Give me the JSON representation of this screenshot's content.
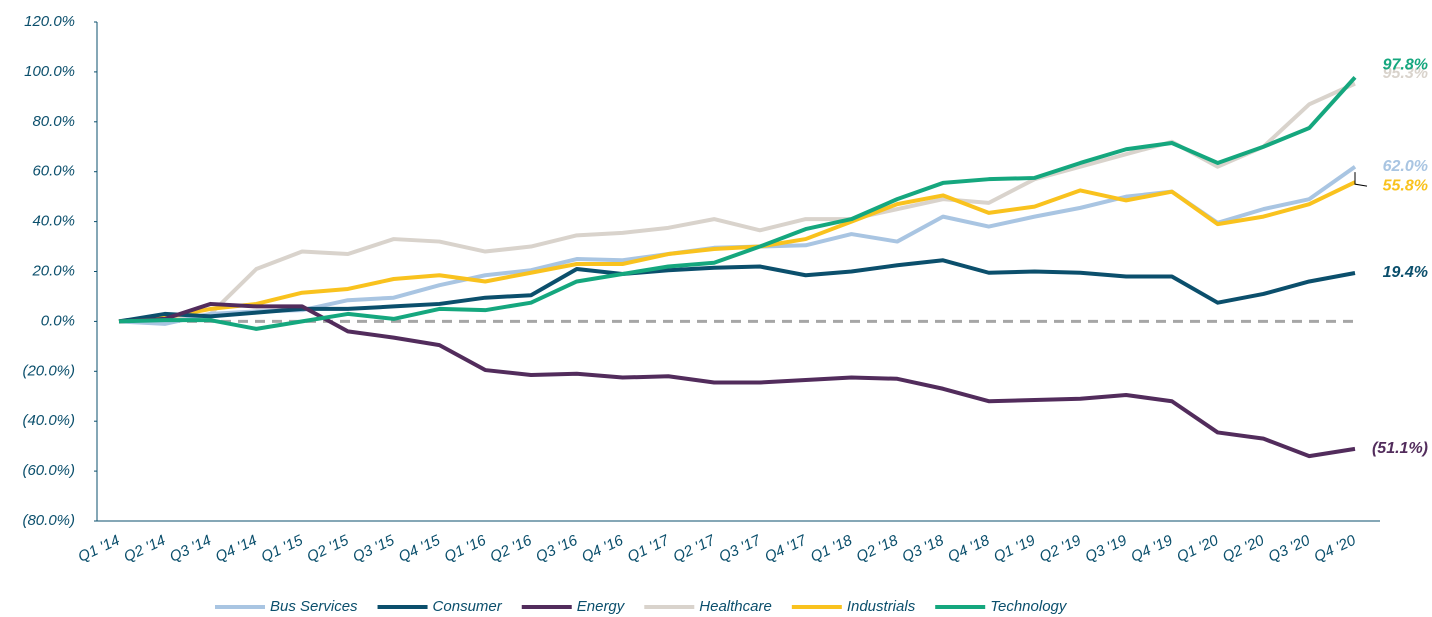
{
  "chart_data": {
    "type": "line",
    "x": [
      "Q1 '14",
      "Q2 '14",
      "Q3 '14",
      "Q4 '14",
      "Q1 '15",
      "Q2 '15",
      "Q3 '15",
      "Q4 '15",
      "Q1 '16",
      "Q2 '16",
      "Q3 '16",
      "Q4 '16",
      "Q1 '17",
      "Q2 '17",
      "Q3 '17",
      "Q4 '17",
      "Q1 '18",
      "Q2 '18",
      "Q3 '18",
      "Q4 '18",
      "Q1 '19",
      "Q2 '19",
      "Q3 '19",
      "Q4 '19",
      "Q1 '20",
      "Q2 '20",
      "Q3 '20",
      "Q4 '20"
    ],
    "ylim": [
      -80,
      120
    ],
    "yticks": [
      {
        "value": -80,
        "label": "(80.0%)"
      },
      {
        "value": -60,
        "label": "(60.0%)"
      },
      {
        "value": -40,
        "label": "(40.0%)"
      },
      {
        "value": -20,
        "label": "(20.0%)"
      },
      {
        "value": 0,
        "label": "0.0%"
      },
      {
        "value": 20,
        "label": "20.0%"
      },
      {
        "value": 40,
        "label": "40.0%"
      },
      {
        "value": 60,
        "label": "60.0%"
      },
      {
        "value": 80,
        "label": "80.0%"
      },
      {
        "value": 100,
        "label": "100.0%"
      },
      {
        "value": 120,
        "label": "120.0%"
      }
    ],
    "baseline": 0,
    "grid": false,
    "legend": "bottom",
    "series": [
      {
        "name": "Bus Services",
        "color": "#a9c5e2",
        "values": [
          0,
          -1,
          3,
          4,
          4.5,
          8.5,
          9.5,
          14.5,
          18.5,
          20.5,
          25,
          24.5,
          27,
          29.5,
          30,
          30.5,
          35,
          32,
          42,
          38,
          42,
          45.5,
          50,
          52,
          39.5,
          45,
          49,
          62.0
        ],
        "value_labels": [
          null,
          null,
          null,
          null,
          null,
          null,
          null,
          null,
          null,
          null,
          null,
          null,
          null,
          null,
          null,
          null,
          null,
          null,
          null,
          null,
          null,
          null,
          null,
          null,
          null,
          null,
          null,
          "62.0%"
        ]
      },
      {
        "name": "Consumer",
        "color": "#0b4f6c",
        "values": [
          0,
          3,
          2,
          3.5,
          5,
          5,
          6,
          7,
          9.5,
          10.5,
          21,
          19,
          20.5,
          21.5,
          22,
          18.5,
          20,
          22.5,
          24.5,
          19.5,
          20,
          19.5,
          18,
          18,
          7.5,
          11,
          16,
          19.4
        ],
        "value_labels": [
          null,
          null,
          null,
          null,
          null,
          null,
          null,
          null,
          null,
          null,
          null,
          null,
          null,
          null,
          null,
          null,
          null,
          null,
          null,
          null,
          null,
          null,
          null,
          null,
          null,
          null,
          null,
          "19.4%"
        ]
      },
      {
        "name": "Energy",
        "color": "#522c5c",
        "values": [
          0,
          1,
          7,
          6,
          6,
          -4,
          -6.5,
          -9.5,
          -19.5,
          -21.5,
          -21,
          -22.5,
          -22,
          -24.5,
          -24.5,
          -23.5,
          -22.5,
          -23,
          -27,
          -32,
          -31.5,
          -31,
          -29.5,
          -32,
          -44.5,
          -47,
          -54,
          -51.1
        ],
        "value_labels": [
          null,
          null,
          null,
          null,
          null,
          null,
          null,
          null,
          null,
          null,
          null,
          null,
          null,
          null,
          null,
          null,
          null,
          null,
          null,
          null,
          null,
          null,
          null,
          null,
          null,
          null,
          null,
          "(51.1%)"
        ]
      },
      {
        "name": "Healthcare",
        "color": "#d9d3cc",
        "values": [
          0,
          0,
          3,
          21,
          28,
          27,
          33,
          32,
          28,
          30,
          34.5,
          35.5,
          37.5,
          41,
          36.5,
          41,
          41,
          45,
          49,
          47.5,
          57,
          62,
          67,
          72,
          62,
          70,
          87,
          95.3
        ],
        "value_labels": [
          null,
          null,
          null,
          null,
          null,
          null,
          null,
          null,
          null,
          null,
          null,
          null,
          null,
          null,
          null,
          null,
          null,
          null,
          null,
          null,
          null,
          null,
          null,
          null,
          null,
          null,
          null,
          "95.3%"
        ]
      },
      {
        "name": "Industrials",
        "color": "#f9c21e",
        "values": [
          0,
          1.5,
          5,
          7,
          11.5,
          13,
          17,
          18.5,
          16,
          19.5,
          23,
          23,
          27,
          29,
          30,
          33,
          40,
          47,
          50.5,
          43.5,
          46,
          52.5,
          48.5,
          52,
          39,
          42,
          47,
          55.8
        ],
        "value_labels": [
          null,
          null,
          null,
          null,
          null,
          null,
          null,
          null,
          null,
          null,
          null,
          null,
          null,
          null,
          null,
          null,
          null,
          null,
          null,
          null,
          null,
          null,
          null,
          null,
          null,
          null,
          null,
          "55.8%"
        ]
      },
      {
        "name": "Technology",
        "color": "#15a77e",
        "values": [
          0,
          0.5,
          0.5,
          -3,
          0,
          3,
          1,
          5,
          4.5,
          7.5,
          16,
          19,
          22,
          23.5,
          30,
          37,
          41,
          49,
          55.5,
          57,
          57.5,
          63.5,
          69,
          71.5,
          63.5,
          70,
          77.5,
          97.8
        ],
        "value_labels": [
          null,
          null,
          null,
          null,
          null,
          null,
          null,
          null,
          null,
          null,
          null,
          null,
          null,
          null,
          null,
          null,
          null,
          null,
          null,
          null,
          null,
          null,
          null,
          null,
          null,
          null,
          null,
          "97.8%"
        ]
      }
    ]
  }
}
